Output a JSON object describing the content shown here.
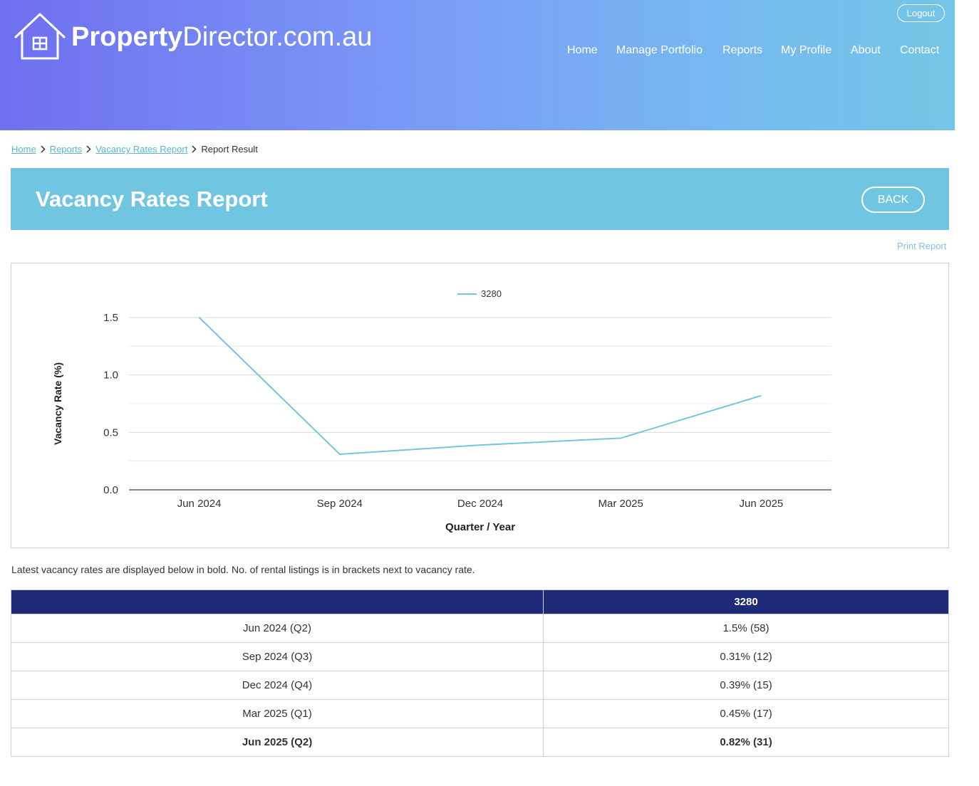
{
  "brand": {
    "name_bold": "Property",
    "name_rest": "Director.com.au"
  },
  "header": {
    "logout_label": "Logout",
    "nav": [
      "Home",
      "Manage Portfolio",
      "Reports",
      "My Profile",
      "About",
      "Contact"
    ]
  },
  "breadcrumb": {
    "items": [
      "Home",
      "Reports",
      "Vacancy Rates Report"
    ],
    "current": "Report Result"
  },
  "page": {
    "title": "Vacancy Rates Report",
    "back_label": "BACK",
    "print_label": "Print Report",
    "note": "Latest vacancy rates are displayed below in bold. No. of rental listings is in brackets next to vacancy rate."
  },
  "chart_data": {
    "type": "line",
    "categories": [
      "Jun 2024",
      "Sep 2024",
      "Dec 2024",
      "Mar 2025",
      "Jun 2025"
    ],
    "series": [
      {
        "name": "3280",
        "values": [
          1.5,
          0.31,
          0.39,
          0.45,
          0.82
        ],
        "color": "#70c6e0"
      }
    ],
    "xlabel": "Quarter / Year",
    "ylabel": "Vacancy Rate (%)",
    "ylim": [
      0,
      1.5
    ],
    "yticks": [
      "0.0",
      "0.5",
      "1.0",
      "1.5"
    ],
    "legend_position": "top",
    "grid": true
  },
  "table": {
    "headers": [
      "",
      "3280"
    ],
    "rows": [
      {
        "period": "Jun 2024 (Q2)",
        "value": "1.5% (58)",
        "bold": false
      },
      {
        "period": "Sep 2024 (Q3)",
        "value": "0.31% (12)",
        "bold": false
      },
      {
        "period": "Dec 2024 (Q4)",
        "value": "0.39% (15)",
        "bold": false
      },
      {
        "period": "Mar 2025 (Q1)",
        "value": "0.45% (17)",
        "bold": false
      },
      {
        "period": "Jun 2025 (Q2)",
        "value": "0.82% (31)",
        "bold": true
      }
    ]
  },
  "colors": {
    "accent": "#70c6e0",
    "table_header": "#1f2a78",
    "link": "#5ab4d6"
  }
}
